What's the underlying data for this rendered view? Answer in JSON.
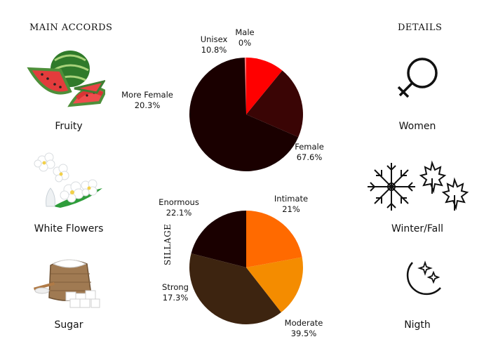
{
  "accords": {
    "heading": "MAIN ACCORDS",
    "items": [
      {
        "label": "Fruity",
        "icon": "watermelon-icon"
      },
      {
        "label": "White Flowers",
        "icon": "white-flowers-icon"
      },
      {
        "label": "Sugar",
        "icon": "sugar-sack-icon"
      }
    ]
  },
  "details": {
    "heading": "DETAILS",
    "items": [
      {
        "label": "Women",
        "icon": "female-symbol-icon"
      },
      {
        "label": "Winter/Fall",
        "icon": "snowflake-maple-leaves-icon"
      },
      {
        "label": "Nigth",
        "icon": "crescent-moon-stars-icon"
      }
    ]
  },
  "chart_data": [
    {
      "type": "pie",
      "categories": [
        "Female",
        "More Female",
        "Unisex",
        "Male"
      ],
      "values": [
        67.6,
        20.3,
        10.8,
        0
      ],
      "value_labels": [
        "67.6%",
        "20.3%",
        "10.8%",
        "0%"
      ],
      "colors": [
        "#1a0000",
        "#3a0505",
        "#ff0000",
        "#ff6f6f"
      ]
    },
    {
      "type": "pie",
      "ylabel": "SILLAGE",
      "categories": [
        "Intimate",
        "Moderate",
        "Strong",
        "Enormous"
      ],
      "values": [
        21,
        39.5,
        17.3,
        22.1
      ],
      "value_labels": [
        "21%",
        "39.5%",
        "17.3%",
        "22.1%"
      ],
      "colors": [
        "#1a0000",
        "#3d2410",
        "#f48c00",
        "#ff6a00"
      ]
    }
  ]
}
